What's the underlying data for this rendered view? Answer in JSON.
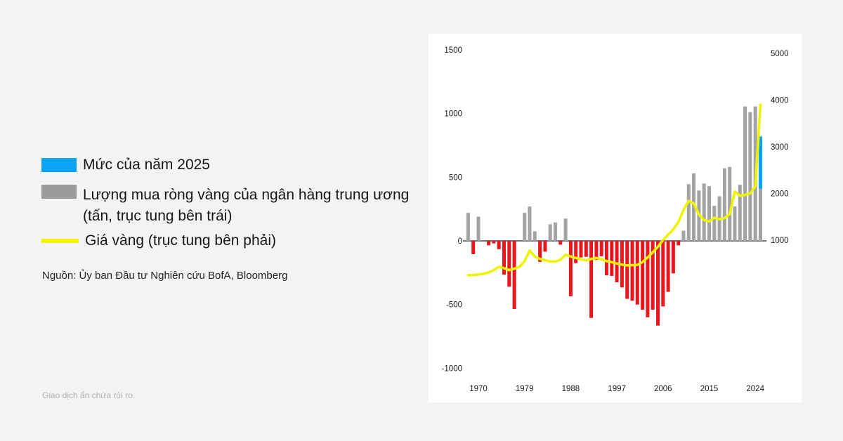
{
  "page": {
    "disclaimer": "Giao dịch ẩn chứa rủi ro.",
    "background": "#f4f3f1"
  },
  "legend": {
    "items": [
      {
        "label": "Mức của năm 2025",
        "color": "#0aa3f5"
      },
      {
        "label": "Lượng mua ròng vàng của ngân hàng trung ương",
        "label_line2": "(tấn, trục tung bên trái)",
        "color": "#9b9b9b"
      },
      {
        "label": "Giá vàng (trục tung bên phải)",
        "color": "#eef402"
      }
    ],
    "source": "Nguồn: Ủy ban Đầu tư Nghiên cứu BofA, Bloomberg"
  },
  "chart_data": {
    "type": "bar+line",
    "left_axis": {
      "title": "Lượng mua ròng vàng của ngân hàng trung ương (tấn)",
      "ticks": [
        1500,
        1000,
        500,
        0,
        -500,
        -1000
      ],
      "range": [
        -1000,
        1500
      ]
    },
    "right_axis": {
      "title": "Giá vàng",
      "ticks": [
        5000,
        4000,
        3000,
        2000,
        1000
      ],
      "range": [
        1000,
        5000
      ]
    },
    "x_ticks": [
      1970,
      1979,
      1988,
      1997,
      2006,
      2015,
      2024
    ],
    "years": [
      1968,
      1969,
      1970,
      1971,
      1972,
      1973,
      1974,
      1975,
      1976,
      1977,
      1978,
      1979,
      1980,
      1981,
      1982,
      1983,
      1984,
      1985,
      1986,
      1987,
      1988,
      1989,
      1990,
      1991,
      1992,
      1993,
      1994,
      1995,
      1996,
      1997,
      1998,
      1999,
      2000,
      2001,
      2002,
      2003,
      2004,
      2005,
      2006,
      2007,
      2008,
      2009,
      2010,
      2011,
      2012,
      2013,
      2014,
      2015,
      2016,
      2017,
      2018,
      2019,
      2020,
      2021,
      2022,
      2023,
      2024,
      2025
    ],
    "net_purchases_t": [
      220,
      -105,
      190,
      0,
      -35,
      -20,
      -65,
      -265,
      -360,
      -535,
      0,
      220,
      270,
      75,
      -165,
      -85,
      130,
      145,
      -30,
      175,
      -435,
      -175,
      -130,
      -125,
      -605,
      -150,
      -120,
      -270,
      -275,
      -325,
      -365,
      -455,
      -470,
      -500,
      -540,
      -600,
      -540,
      -665,
      -515,
      -400,
      -255,
      -35,
      80,
      445,
      530,
      395,
      450,
      430,
      275,
      350,
      570,
      580,
      270,
      440,
      1055,
      1010,
      1055,
      820
    ],
    "bar_2025": {
      "gray_to": 410,
      "blue_from": 410,
      "blue_to": 820
    },
    "gold_price_usd": [
      250,
      255,
      265,
      280,
      310,
      360,
      430,
      400,
      360,
      390,
      430,
      550,
      780,
      650,
      600,
      570,
      545,
      540,
      580,
      690,
      650,
      620,
      590,
      565,
      600,
      620,
      590,
      550,
      530,
      500,
      475,
      460,
      465,
      470,
      530,
      630,
      740,
      860,
      1000,
      1120,
      1230,
      1390,
      1650,
      1840,
      1790,
      1550,
      1430,
      1400,
      1480,
      1450,
      1470,
      1560,
      2040,
      1950,
      1970,
      2000,
      2150,
      3900
    ],
    "colors": {
      "positive_bar": "#a3a3a3",
      "negative_bar": "#e9161c",
      "level_2025": "#0aa3f5",
      "gold_line": "#eef402",
      "zero_line": "#222222",
      "axis_text": "#1a1a1a",
      "panel_bg": "#ffffff"
    }
  }
}
